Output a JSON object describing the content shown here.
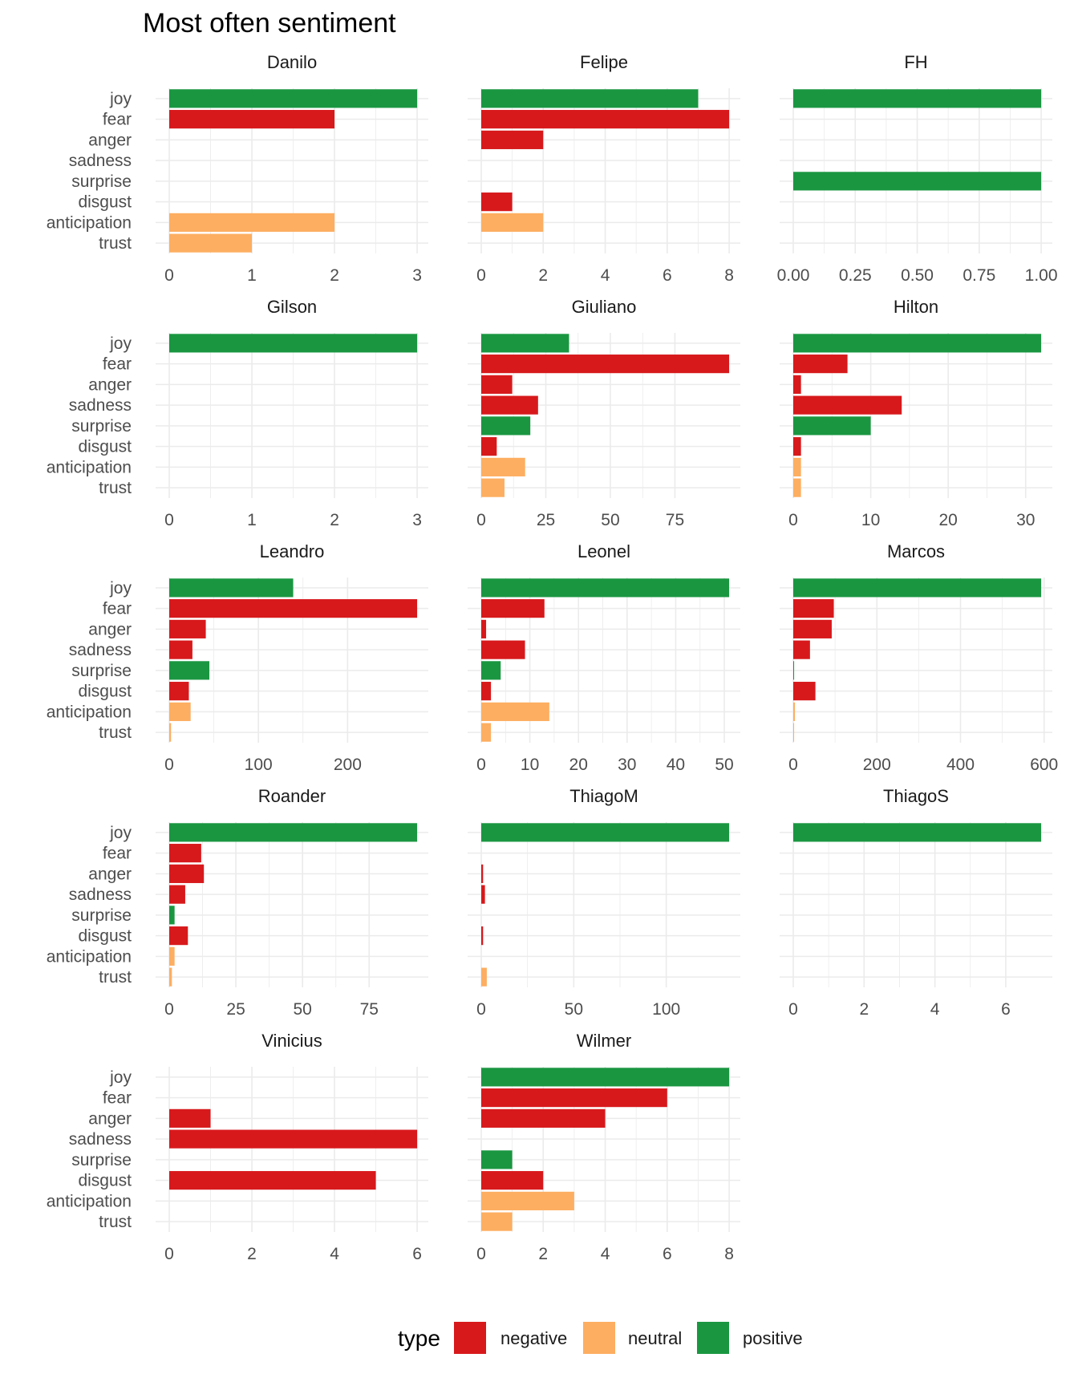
{
  "chart_data": {
    "type": "bar",
    "orientation": "horizontal",
    "facet": "wrap",
    "title": "Most often sentiment",
    "categories": [
      "joy",
      "fear",
      "anger",
      "sadness",
      "surprise",
      "disgust",
      "anticipation",
      "trust"
    ],
    "category_type": {
      "joy": "positive",
      "fear": "negative",
      "anger": "negative",
      "sadness": "negative",
      "surprise": "positive",
      "disgust": "negative",
      "anticipation": "neutral",
      "trust": "neutral"
    },
    "legend": {
      "title": "type",
      "placement": "bottom",
      "entries": [
        {
          "label": "negative",
          "color": "#d7191c"
        },
        {
          "label": "neutral",
          "color": "#fdae61"
        },
        {
          "label": "positive",
          "color": "#1a9641"
        }
      ]
    },
    "grid": true,
    "panels": [
      {
        "name": "Danilo",
        "values": [
          3,
          2,
          0,
          0,
          0,
          0,
          2,
          1
        ],
        "xlim": [
          0,
          3
        ],
        "ticks": [
          0,
          1,
          2,
          3
        ],
        "tick_labels": [
          "0",
          "1",
          "2",
          "3"
        ]
      },
      {
        "name": "Felipe",
        "values": [
          7,
          8,
          2,
          0,
          0,
          1,
          2,
          0
        ],
        "xlim": [
          0,
          8
        ],
        "ticks": [
          0,
          2,
          4,
          6,
          8
        ],
        "tick_labels": [
          "0",
          "2",
          "4",
          "6",
          "8"
        ]
      },
      {
        "name": "FH",
        "values": [
          1,
          0,
          0,
          0,
          1,
          0,
          0,
          0
        ],
        "xlim": [
          0,
          1
        ],
        "ticks": [
          0,
          0.25,
          0.5,
          0.75,
          1
        ],
        "tick_labels": [
          "0.00",
          "0.25",
          "0.50",
          "0.75",
          "1.00"
        ]
      },
      {
        "name": "Gilson",
        "values": [
          3,
          0,
          0,
          0,
          0,
          0,
          0,
          0
        ],
        "xlim": [
          0,
          3
        ],
        "ticks": [
          0,
          1,
          2,
          3
        ],
        "tick_labels": [
          "0",
          "1",
          "2",
          "3"
        ]
      },
      {
        "name": "Giuliano",
        "values": [
          34,
          96,
          12,
          22,
          19,
          6,
          17,
          9
        ],
        "xlim": [
          0,
          96
        ],
        "ticks": [
          0,
          25,
          50,
          75
        ],
        "tick_labels": [
          "0",
          "25",
          "50",
          "75"
        ]
      },
      {
        "name": "Hilton",
        "values": [
          32,
          7,
          1,
          14,
          10,
          1,
          1,
          1
        ],
        "xlim": [
          0,
          32
        ],
        "ticks": [
          0,
          10,
          20,
          30
        ],
        "tick_labels": [
          "0",
          "10",
          "20",
          "30"
        ]
      },
      {
        "name": "Leandro",
        "values": [
          139,
          278,
          41,
          26,
          45,
          22,
          24,
          2
        ],
        "xlim": [
          0,
          278
        ],
        "ticks": [
          0,
          100,
          200
        ],
        "tick_labels": [
          "0",
          "100",
          "200"
        ]
      },
      {
        "name": "Leonel",
        "values": [
          51,
          13,
          1,
          9,
          4,
          2,
          14,
          2
        ],
        "xlim": [
          0,
          51
        ],
        "ticks": [
          0,
          10,
          20,
          30,
          40,
          50
        ],
        "tick_labels": [
          "0",
          "10",
          "20",
          "30",
          "40",
          "50"
        ]
      },
      {
        "name": "Marcos",
        "values": [
          593,
          97,
          92,
          40,
          2,
          53,
          4,
          2
        ],
        "xlim": [
          0,
          593
        ],
        "ticks": [
          0,
          200,
          400,
          600
        ],
        "tick_labels": [
          "0",
          "200",
          "400",
          "600"
        ]
      },
      {
        "name": "Roander",
        "values": [
          93,
          12,
          13,
          6,
          2,
          7,
          2,
          1
        ],
        "xlim": [
          0,
          93
        ],
        "ticks": [
          0,
          25,
          50,
          75
        ],
        "tick_labels": [
          "0",
          "25",
          "50",
          "75"
        ]
      },
      {
        "name": "ThiagoM",
        "values": [
          134,
          0,
          1,
          2,
          0,
          1,
          0,
          3
        ],
        "xlim": [
          0,
          134
        ],
        "ticks": [
          0,
          50,
          100
        ],
        "tick_labels": [
          "0",
          "50",
          "100"
        ]
      },
      {
        "name": "ThiagoS",
        "values": [
          7,
          0,
          0,
          0,
          0,
          0,
          0,
          0
        ],
        "xlim": [
          0,
          7
        ],
        "ticks": [
          0,
          2,
          4,
          6
        ],
        "tick_labels": [
          "0",
          "2",
          "4",
          "6"
        ]
      },
      {
        "name": "Vinicius",
        "values": [
          0,
          0,
          1,
          6,
          0,
          5,
          0,
          0
        ],
        "xlim": [
          0,
          6
        ],
        "ticks": [
          0,
          2,
          4,
          6
        ],
        "tick_labels": [
          "0",
          "2",
          "4",
          "6"
        ]
      },
      {
        "name": "Wilmer",
        "values": [
          8,
          6,
          4,
          0,
          1,
          2,
          3,
          1
        ],
        "xlim": [
          0,
          8
        ],
        "ticks": [
          0,
          2,
          4,
          6,
          8
        ],
        "tick_labels": [
          "0",
          "2",
          "4",
          "6",
          "8"
        ]
      }
    ]
  }
}
